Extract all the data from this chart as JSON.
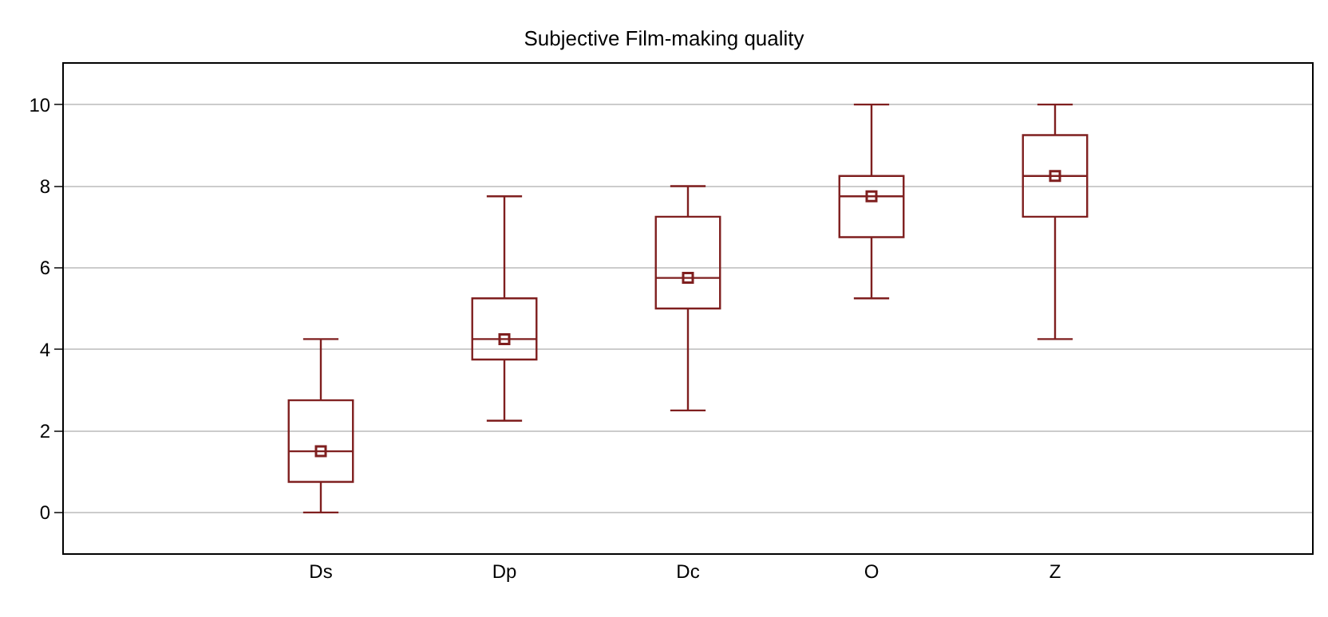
{
  "chart_data": {
    "type": "box",
    "title": "Subjective Film-making quality",
    "categories": [
      "Ds",
      "Dp",
      "Dc",
      "O",
      "Z"
    ],
    "color": "#7f1f1f",
    "marker": "square",
    "grid": "y",
    "ylim": [
      -1,
      11
    ],
    "yticks": [
      0,
      2,
      4,
      6,
      8,
      10
    ],
    "boxes": [
      {
        "low": 0,
        "q1": 0.75,
        "median": 1.5,
        "q3": 2.75,
        "high": 4.25,
        "mean": 1.5
      },
      {
        "low": 2.25,
        "q1": 3.75,
        "median": 4.25,
        "q3": 5.25,
        "high": 7.75,
        "mean": 4.25
      },
      {
        "low": 2.5,
        "q1": 5,
        "median": 5.75,
        "q3": 7.25,
        "high": 8,
        "mean": 5.75
      },
      {
        "low": 5.25,
        "q1": 6.75,
        "median": 7.75,
        "q3": 8.25,
        "high": 10,
        "mean": 7.75
      },
      {
        "low": 4.25,
        "q1": 7.25,
        "median": 8.25,
        "q3": 9.25,
        "high": 10,
        "mean": 8.25
      }
    ]
  }
}
